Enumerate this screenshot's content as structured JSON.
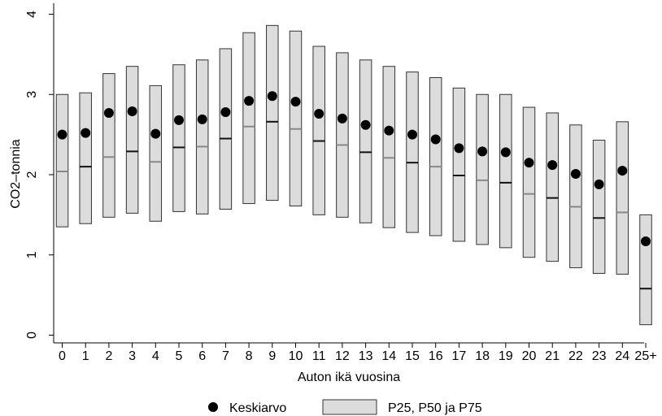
{
  "chart_data": {
    "type": "boxplot",
    "xlabel": "Auton ikä vuosina",
    "ylabel": "CO2–tonnia",
    "ylim": [
      0,
      4
    ],
    "yticks": [
      0,
      1,
      2,
      3,
      4
    ],
    "categories": [
      "0",
      "1",
      "2",
      "3",
      "4",
      "5",
      "6",
      "7",
      "8",
      "9",
      "10",
      "11",
      "12",
      "13",
      "14",
      "15",
      "16",
      "17",
      "18",
      "19",
      "20",
      "21",
      "22",
      "23",
      "24",
      "25+"
    ],
    "p25": [
      1.35,
      1.39,
      1.47,
      1.52,
      1.42,
      1.54,
      1.51,
      1.57,
      1.64,
      1.68,
      1.61,
      1.5,
      1.47,
      1.4,
      1.34,
      1.28,
      1.24,
      1.17,
      1.13,
      1.09,
      0.97,
      0.92,
      0.84,
      0.77,
      0.76,
      0.13
    ],
    "p50": [
      2.04,
      2.1,
      2.22,
      2.29,
      2.16,
      2.34,
      2.35,
      2.45,
      2.6,
      2.66,
      2.57,
      2.42,
      2.37,
      2.28,
      2.21,
      2.15,
      2.1,
      1.99,
      1.93,
      1.9,
      1.76,
      1.71,
      1.6,
      1.46,
      1.53,
      0.58
    ],
    "p75": [
      3.0,
      3.02,
      3.26,
      3.35,
      3.11,
      3.37,
      3.43,
      3.57,
      3.77,
      3.86,
      3.79,
      3.6,
      3.52,
      3.43,
      3.35,
      3.28,
      3.21,
      3.08,
      3.0,
      3.0,
      2.84,
      2.77,
      2.62,
      2.43,
      2.66,
      1.5
    ],
    "mean": [
      2.5,
      2.52,
      2.77,
      2.79,
      2.51,
      2.68,
      2.69,
      2.78,
      2.92,
      2.98,
      2.91,
      2.76,
      2.7,
      2.62,
      2.55,
      2.5,
      2.44,
      2.33,
      2.29,
      2.28,
      2.15,
      2.12,
      2.01,
      1.88,
      2.05,
      1.17
    ],
    "legend": {
      "position": "bottom",
      "mean_label": "Keskiarvo",
      "box_label": "P25, P50 ja P75"
    },
    "colors": {
      "box_fill": "#dcdcdc",
      "box_stroke": "#333333",
      "median_dark": "#111111",
      "median_light": "#888888",
      "marker": "#000000"
    },
    "grid": false
  }
}
